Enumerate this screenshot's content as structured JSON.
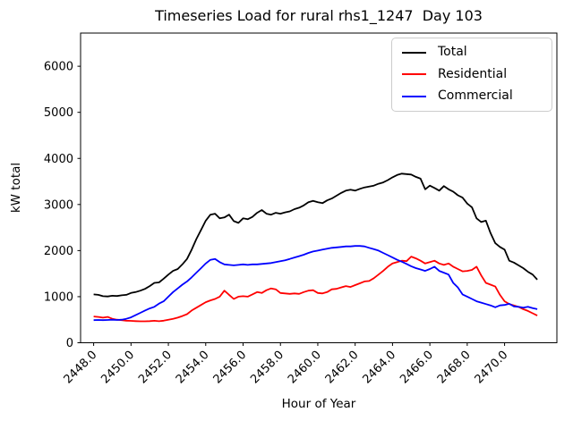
{
  "chart_data": {
    "type": "line",
    "title": "Timeseries Load for rural rhs1_1247  Day 103",
    "xlabel": "Hour of Year",
    "ylabel": "kW total",
    "xlim": [
      2447.3,
      2472.8
    ],
    "ylim": [
      0,
      6720
    ],
    "grid": false,
    "legend_position": "upper right",
    "xticks": [
      2448,
      2450,
      2452,
      2454,
      2456,
      2458,
      2460,
      2462,
      2464,
      2466,
      2468,
      2470
    ],
    "xtick_labels": [
      "2448.0",
      "2450.0",
      "2452.0",
      "2454.0",
      "2456.0",
      "2458.0",
      "2460.0",
      "2462.0",
      "2464.0",
      "2466.0",
      "2468.0",
      "2470.0"
    ],
    "yticks": [
      0,
      1000,
      2000,
      3000,
      4000,
      5000,
      6000
    ],
    "ytick_labels": [
      "0",
      "1000",
      "2000",
      "3000",
      "4000",
      "5000",
      "6000"
    ],
    "x": [
      2448.0,
      2448.25,
      2448.5,
      2448.75,
      2449.0,
      2449.25,
      2449.5,
      2449.75,
      2450.0,
      2450.25,
      2450.5,
      2450.75,
      2451.0,
      2451.25,
      2451.5,
      2451.75,
      2452.0,
      2452.25,
      2452.5,
      2452.75,
      2453.0,
      2453.25,
      2453.5,
      2453.75,
      2454.0,
      2454.25,
      2454.5,
      2454.75,
      2455.0,
      2455.25,
      2455.5,
      2455.75,
      2456.0,
      2456.25,
      2456.5,
      2456.75,
      2457.0,
      2457.25,
      2457.5,
      2457.75,
      2458.0,
      2458.25,
      2458.5,
      2458.75,
      2459.0,
      2459.25,
      2459.5,
      2459.75,
      2460.0,
      2460.25,
      2460.5,
      2460.75,
      2461.0,
      2461.25,
      2461.5,
      2461.75,
      2462.0,
      2462.25,
      2462.5,
      2462.75,
      2463.0,
      2463.25,
      2463.5,
      2463.75,
      2464.0,
      2464.25,
      2464.5,
      2464.75,
      2465.0,
      2465.25,
      2465.5,
      2465.75,
      2466.0,
      2466.25,
      2466.5,
      2466.75,
      2467.0,
      2467.25,
      2467.5,
      2467.75,
      2468.0,
      2468.25,
      2468.5,
      2468.75,
      2469.0,
      2469.25,
      2469.5,
      2469.75,
      2470.0,
      2470.25,
      2470.5,
      2470.75,
      2471.0,
      2471.25,
      2471.5,
      2471.75
    ],
    "series": [
      {
        "name": "Total",
        "color": "#000000",
        "values": [
          1050,
          1040,
          1010,
          1005,
          1020,
          1015,
          1030,
          1040,
          1080,
          1100,
          1130,
          1170,
          1230,
          1300,
          1310,
          1390,
          1480,
          1560,
          1600,
          1700,
          1820,
          2020,
          2250,
          2450,
          2650,
          2780,
          2800,
          2700,
          2720,
          2780,
          2640,
          2600,
          2700,
          2680,
          2730,
          2820,
          2880,
          2800,
          2780,
          2820,
          2800,
          2830,
          2850,
          2900,
          2930,
          2980,
          3050,
          3080,
          3050,
          3030,
          3090,
          3130,
          3190,
          3250,
          3300,
          3320,
          3300,
          3340,
          3370,
          3390,
          3410,
          3450,
          3480,
          3530,
          3590,
          3640,
          3670,
          3660,
          3650,
          3600,
          3560,
          3330,
          3410,
          3360,
          3300,
          3400,
          3330,
          3280,
          3200,
          3150,
          3020,
          2940,
          2700,
          2620,
          2650,
          2380,
          2160,
          2080,
          2020,
          1780,
          1740,
          1680,
          1620,
          1540,
          1480,
          1370
        ]
      },
      {
        "name": "Residential",
        "color": "#ff0000",
        "values": [
          570,
          560,
          545,
          560,
          520,
          500,
          490,
          480,
          475,
          470,
          465,
          465,
          470,
          478,
          468,
          480,
          500,
          520,
          545,
          580,
          620,
          700,
          760,
          820,
          880,
          920,
          950,
          1000,
          1130,
          1040,
          950,
          1000,
          1010,
          1000,
          1050,
          1100,
          1080,
          1140,
          1180,
          1160,
          1080,
          1070,
          1060,
          1070,
          1060,
          1100,
          1130,
          1140,
          1080,
          1070,
          1100,
          1160,
          1170,
          1200,
          1230,
          1210,
          1250,
          1290,
          1330,
          1340,
          1400,
          1480,
          1560,
          1650,
          1720,
          1750,
          1780,
          1770,
          1870,
          1830,
          1780,
          1720,
          1750,
          1780,
          1720,
          1690,
          1720,
          1650,
          1600,
          1550,
          1560,
          1580,
          1650,
          1460,
          1300,
          1260,
          1220,
          1040,
          900,
          840,
          810,
          780,
          730,
          690,
          640,
          590
        ]
      },
      {
        "name": "Commercial",
        "color": "#0000ff",
        "values": [
          490,
          495,
          490,
          495,
          500,
          495,
          500,
          520,
          550,
          600,
          650,
          700,
          745,
          780,
          850,
          900,
          1000,
          1100,
          1180,
          1260,
          1330,
          1420,
          1520,
          1620,
          1720,
          1800,
          1820,
          1750,
          1700,
          1690,
          1680,
          1690,
          1700,
          1690,
          1700,
          1700,
          1710,
          1720,
          1730,
          1750,
          1770,
          1790,
          1820,
          1850,
          1880,
          1910,
          1950,
          1980,
          2000,
          2020,
          2040,
          2060,
          2070,
          2080,
          2090,
          2090,
          2100,
          2100,
          2090,
          2060,
          2030,
          2000,
          1950,
          1900,
          1850,
          1800,
          1760,
          1710,
          1660,
          1620,
          1590,
          1560,
          1600,
          1650,
          1560,
          1520,
          1480,
          1300,
          1200,
          1050,
          1000,
          950,
          900,
          870,
          840,
          810,
          770,
          810,
          820,
          845,
          790,
          780,
          760,
          780,
          750,
          730
        ]
      }
    ]
  }
}
